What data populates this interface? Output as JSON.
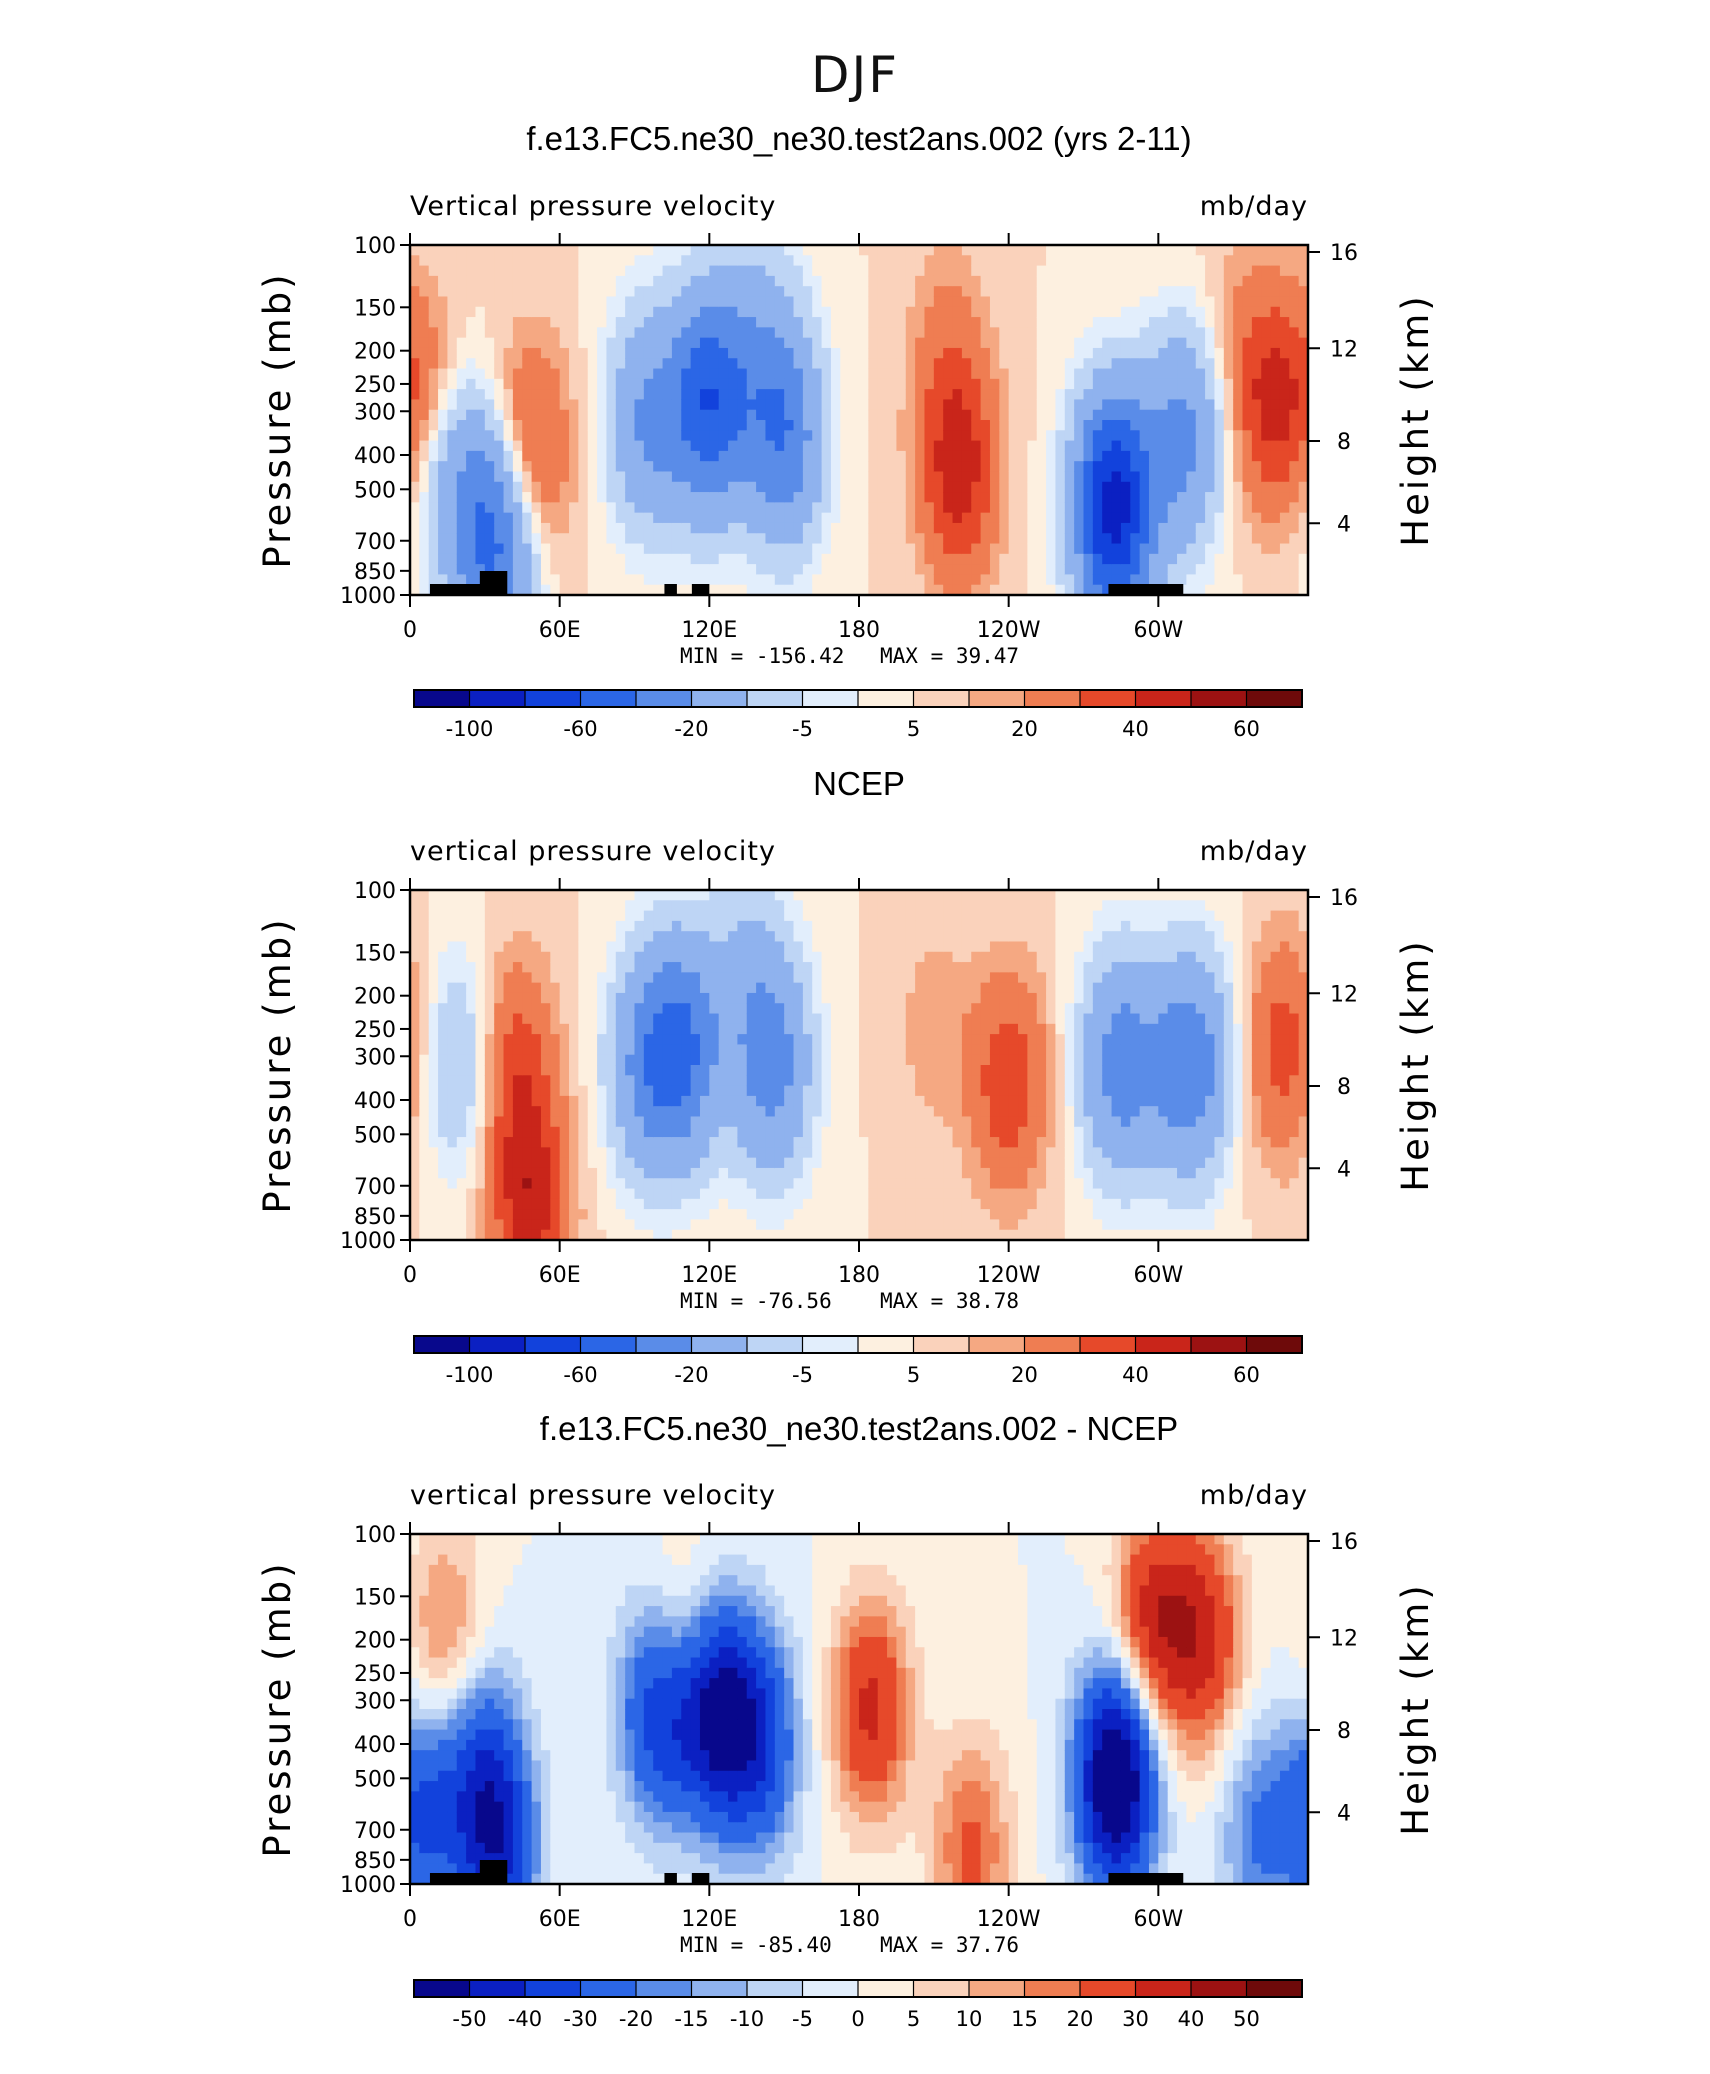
{
  "figure": {
    "main_title": "DJF"
  },
  "colors": {
    "palette": [
      "#08088c",
      "#0b20c2",
      "#1242dc",
      "#2b66e6",
      "#5a8ce8",
      "#8fb2ee",
      "#bed5f5",
      "#e2eefc",
      "#fdf0e0",
      "#fad2bb",
      "#f5a882",
      "#ef7d52",
      "#e6492a",
      "#c9251a",
      "#9c1212",
      "#6e0a0a"
    ],
    "land": "#000000"
  },
  "chart_data": [
    {
      "type": "heatmap",
      "title": "f.e13.FC5.ne30_ne30.test2ans.002 (yrs 2-11)",
      "variable_label": "Vertical pressure velocity",
      "units_label": "mb/day",
      "ylabel": "Pressure (mb)",
      "y2label": "Height (km)",
      "xticks": [
        "0",
        "60E",
        "120E",
        "180",
        "120W",
        "60W"
      ],
      "yticks": [
        "100",
        "150",
        "200",
        "250",
        "300",
        "400",
        "500",
        "700",
        "850",
        "1000"
      ],
      "y2ticks": [
        "16",
        "12",
        "8",
        "4"
      ],
      "stats": {
        "min_text": "MIN = -156.42",
        "max_text": "MAX =  39.47",
        "min": -156.42,
        "max": 39.47
      },
      "colorbar_labels": [
        "-100",
        "-60",
        "-20",
        "-5",
        "5",
        "20",
        "40",
        "60"
      ],
      "features": [
        {
          "lon": 20,
          "lev": 0.7,
          "v": -30
        },
        {
          "lon": 35,
          "lev": 0.85,
          "v": -60
        },
        {
          "lon": 48,
          "lev": 0.6,
          "v": 30
        },
        {
          "lon": 5,
          "lev": 0.4,
          "v": 15
        },
        {
          "lon": 95,
          "lev": 0.5,
          "v": -40
        },
        {
          "lon": 120,
          "lev": 0.45,
          "v": -75
        },
        {
          "lon": 150,
          "lev": 0.55,
          "v": -55
        },
        {
          "lon": 140,
          "lev": 0.25,
          "v": -20
        },
        {
          "lon": 220,
          "lev": 0.65,
          "v": 35
        },
        {
          "lon": 215,
          "lev": 0.3,
          "v": 12
        },
        {
          "lon": 282,
          "lev": 0.75,
          "v": -110
        },
        {
          "lon": 310,
          "lev": 0.55,
          "v": -45
        },
        {
          "lon": 345,
          "lev": 0.45,
          "v": 32
        },
        {
          "lon": 330,
          "lev": 0.2,
          "v": 6
        }
      ]
    },
    {
      "type": "heatmap",
      "title": "NCEP",
      "variable_label": "vertical pressure velocity",
      "units_label": "mb/day",
      "ylabel": "Pressure (mb)",
      "y2label": "Height (km)",
      "xticks": [
        "0",
        "60E",
        "120E",
        "180",
        "120W",
        "60W"
      ],
      "yticks": [
        "100",
        "150",
        "200",
        "250",
        "300",
        "400",
        "500",
        "700",
        "850",
        "1000"
      ],
      "y2ticks": [
        "16",
        "12",
        "8",
        "4"
      ],
      "stats": {
        "min_text": "MIN = -76.56",
        "max_text": "MAX =  38.78",
        "min": -76.56,
        "max": 38.78
      },
      "colorbar_labels": [
        "-100",
        "-60",
        "-20",
        "-5",
        "5",
        "20",
        "40",
        "60"
      ],
      "features": [
        {
          "lon": 20,
          "lev": 0.5,
          "v": -22
        },
        {
          "lon": 42,
          "lev": 0.5,
          "v": 25
        },
        {
          "lon": 48,
          "lev": 0.9,
          "v": 35
        },
        {
          "lon": 95,
          "lev": 0.5,
          "v": -40
        },
        {
          "lon": 110,
          "lev": 0.45,
          "v": -55
        },
        {
          "lon": 145,
          "lev": 0.5,
          "v": -48
        },
        {
          "lon": 135,
          "lev": 0.2,
          "v": -15
        },
        {
          "lon": 240,
          "lev": 0.55,
          "v": 28
        },
        {
          "lon": 210,
          "lev": 0.4,
          "v": 8
        },
        {
          "lon": 285,
          "lev": 0.5,
          "v": -50
        },
        {
          "lon": 313,
          "lev": 0.5,
          "v": -55
        },
        {
          "lon": 350,
          "lev": 0.45,
          "v": 25
        }
      ]
    },
    {
      "type": "heatmap",
      "title": "f.e13.FC5.ne30_ne30.test2ans.002 - NCEP",
      "variable_label": "vertical pressure velocity",
      "units_label": "mb/day",
      "ylabel": "Pressure (mb)",
      "y2label": "Height (km)",
      "xticks": [
        "0",
        "60E",
        "120E",
        "180",
        "120W",
        "60W"
      ],
      "yticks": [
        "100",
        "150",
        "200",
        "250",
        "300",
        "400",
        "500",
        "700",
        "850",
        "1000"
      ],
      "y2ticks": [
        "16",
        "12",
        "8",
        "4"
      ],
      "stats": {
        "min_text": "MIN = -85.40",
        "max_text": "MAX =  37.76",
        "min": -85.4,
        "max": 37.76
      },
      "colorbar_labels": [
        "-50",
        "-40",
        "-30",
        "-20",
        "-15",
        "-10",
        "-5",
        "0",
        "5",
        "10",
        "15",
        "20",
        "30",
        "40",
        "50"
      ],
      "features": [
        {
          "lon": 5,
          "lev": 0.8,
          "v": -30
        },
        {
          "lon": 15,
          "lev": 0.3,
          "v": 18
        },
        {
          "lon": 28,
          "lev": 0.65,
          "v": -25
        },
        {
          "lon": 35,
          "lev": 0.9,
          "v": -40
        },
        {
          "lon": 100,
          "lev": 0.5,
          "v": -40
        },
        {
          "lon": 110,
          "lev": 0.35,
          "v": 20
        },
        {
          "lon": 122,
          "lev": 0.5,
          "v": -55
        },
        {
          "lon": 140,
          "lev": 0.6,
          "v": -35
        },
        {
          "lon": 185,
          "lev": 0.5,
          "v": 32
        },
        {
          "lon": 225,
          "lev": 0.9,
          "v": 22
        },
        {
          "lon": 283,
          "lev": 0.7,
          "v": -70
        },
        {
          "lon": 298,
          "lev": 0.25,
          "v": 35
        },
        {
          "lon": 318,
          "lev": 0.3,
          "v": 32
        },
        {
          "lon": 340,
          "lev": 0.85,
          "v": -20
        }
      ]
    }
  ]
}
